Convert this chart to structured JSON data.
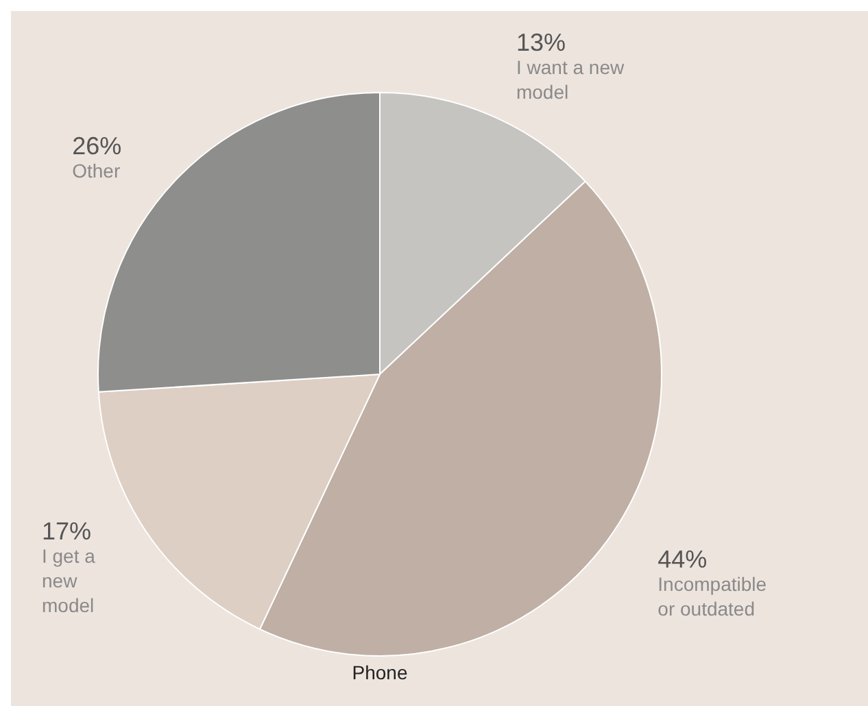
{
  "chart_data": {
    "type": "pie",
    "categories": [
      "I want a new model",
      "Incompatible or outdated",
      "I get a new model",
      "Other"
    ],
    "values": [
      13,
      44,
      17,
      26
    ],
    "value_labels": [
      "13%",
      "44%",
      "17%",
      "26%"
    ],
    "colors": [
      "#c6c4c1",
      "#bfafa4",
      "#ddcfc4",
      "#8e8e8c"
    ],
    "annotations": [
      "Phone"
    ],
    "legend": false
  }
}
